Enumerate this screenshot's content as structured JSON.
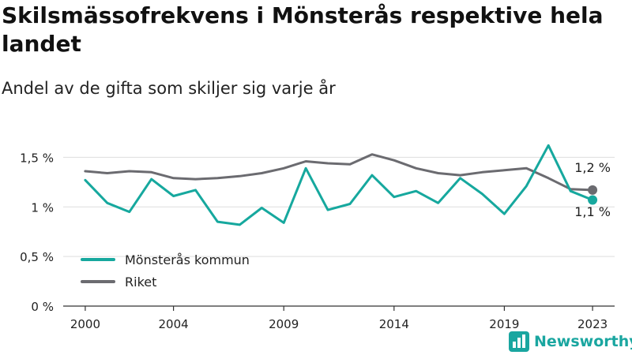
{
  "header": {
    "title": "Skilsmässofrekvens i Mönsterås respektive hela landet",
    "subtitle": "Andel av de gifta som skiljer sig varje år"
  },
  "brand": {
    "name": "Newsworthy",
    "color": "#1aa6a0",
    "icon": "bar-chart-logo-icon"
  },
  "chart_data": {
    "type": "line",
    "x": [
      2000,
      2001,
      2002,
      2003,
      2004,
      2005,
      2006,
      2007,
      2008,
      2009,
      2010,
      2011,
      2012,
      2013,
      2014,
      2015,
      2016,
      2017,
      2018,
      2019,
      2020,
      2021,
      2022,
      2023
    ],
    "xticks": [
      2000,
      2004,
      2009,
      2014,
      2019,
      2023
    ],
    "xtick_labels": [
      "2000",
      "2004",
      "2009",
      "2014",
      "2019",
      "2023"
    ],
    "xlim": [
      1999,
      2024
    ],
    "ylim": [
      0,
      1.75
    ],
    "yticks": [
      0,
      0.5,
      1,
      1.5
    ],
    "ytick_labels": [
      "0 %",
      "0,5 %",
      "1 %",
      "1,5 %"
    ],
    "grid": true,
    "legend_position": "bottom-left",
    "series": [
      {
        "name": "Mönsterås kommun",
        "color": "#16a89e",
        "values": [
          1.27,
          1.04,
          0.95,
          1.28,
          1.11,
          1.17,
          0.85,
          0.82,
          0.99,
          0.84,
          1.39,
          0.97,
          1.03,
          1.32,
          1.1,
          1.16,
          1.04,
          1.29,
          1.13,
          0.93,
          1.21,
          1.62,
          1.16,
          1.07
        ],
        "end_label": "1,1 %"
      },
      {
        "name": "Riket",
        "color": "#6b6b70",
        "values": [
          1.36,
          1.34,
          1.36,
          1.35,
          1.29,
          1.28,
          1.29,
          1.31,
          1.34,
          1.39,
          1.46,
          1.44,
          1.43,
          1.53,
          1.47,
          1.39,
          1.34,
          1.32,
          1.35,
          1.37,
          1.39,
          1.29,
          1.18,
          1.17
        ],
        "end_label": "1,2 %"
      }
    ]
  }
}
